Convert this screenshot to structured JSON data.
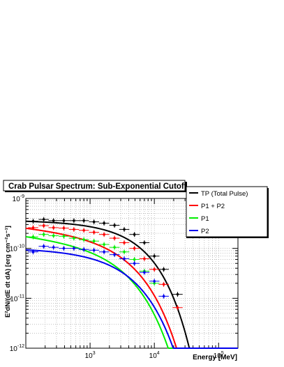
{
  "chart_data": {
    "type": "scatter",
    "title": "Crab Pulsar Spectrum: Sub-Exponential Cutoff",
    "xlabel": "Energy [MeV]",
    "ylabel": "E²dN/(dE dt dA) [erg cm⁻²s⁻¹]",
    "xscale": "log",
    "yscale": "log",
    "xlim": [
      100,
      200000
    ],
    "ylim": [
      1e-12,
      1e-09
    ],
    "grid": true,
    "legend_position": "top-right",
    "x_ticks": [
      {
        "value": 1000,
        "base": "10",
        "exp": "3"
      },
      {
        "value": 10000,
        "base": "10",
        "exp": "4"
      },
      {
        "value": 100000,
        "base": "10",
        "exp": "5"
      }
    ],
    "y_ticks": [
      {
        "value": 1e-09,
        "base": "10",
        "exp": "-9"
      },
      {
        "value": 1e-10,
        "base": "10",
        "exp": "-10"
      },
      {
        "value": 1e-11,
        "base": "10",
        "exp": "-11"
      },
      {
        "value": 1e-12,
        "base": "10",
        "exp": "-12"
      }
    ],
    "series": [
      {
        "name": "TP (Total Pulse)",
        "color": "#000000",
        "model": {
          "norm": 3.6e-10,
          "alpha": 0.02,
          "cutoff_mev": 5000,
          "b": 0.9
        },
        "points": [
          {
            "x": 130,
            "y": 3.5e-10
          },
          {
            "x": 190,
            "y": 3.8e-10
          },
          {
            "x": 270,
            "y": 3.6e-10
          },
          {
            "x": 390,
            "y": 3.6e-10
          },
          {
            "x": 560,
            "y": 3.6e-10
          },
          {
            "x": 800,
            "y": 3.6e-10
          },
          {
            "x": 1150,
            "y": 3.4e-10
          },
          {
            "x": 1650,
            "y": 3.2e-10
          },
          {
            "x": 2400,
            "y": 2.9e-10
          },
          {
            "x": 3400,
            "y": 2.4e-10
          },
          {
            "x": 4900,
            "y": 1.9e-10
          },
          {
            "x": 7000,
            "y": 1.3e-10
          },
          {
            "x": 10000,
            "y": 7e-11
          },
          {
            "x": 14000,
            "y": 3.8e-11
          },
          {
            "x": 23000,
            "y": 1.2e-11
          }
        ]
      },
      {
        "name": "P1 + P2",
        "color": "#ff0000",
        "model": {
          "norm": 2.7e-10,
          "alpha": 0.12,
          "cutoff_mev": 3000,
          "b": 0.8
        },
        "points": [
          {
            "x": 130,
            "y": 2.6e-10
          },
          {
            "x": 190,
            "y": 2.85e-10
          },
          {
            "x": 270,
            "y": 2.6e-10
          },
          {
            "x": 390,
            "y": 2.55e-10
          },
          {
            "x": 560,
            "y": 2.4e-10
          },
          {
            "x": 800,
            "y": 2.3e-10
          },
          {
            "x": 1150,
            "y": 2.1e-10
          },
          {
            "x": 1650,
            "y": 1.9e-10
          },
          {
            "x": 2400,
            "y": 1.6e-10
          },
          {
            "x": 3400,
            "y": 1.3e-10
          },
          {
            "x": 4900,
            "y": 1e-10
          },
          {
            "x": 7000,
            "y": 6.2e-11
          },
          {
            "x": 10000,
            "y": 3.8e-11
          },
          {
            "x": 14000,
            "y": 1.9e-11
          },
          {
            "x": 23000,
            "y": 6.5e-12
          }
        ]
      },
      {
        "name": "P1",
        "color": "#00ee00",
        "model": {
          "norm": 1.85e-10,
          "alpha": 0.14,
          "cutoff_mev": 2500,
          "b": 0.8
        },
        "points": [
          {
            "x": 130,
            "y": 1.7e-10
          },
          {
            "x": 190,
            "y": 1.9e-10
          },
          {
            "x": 270,
            "y": 1.8e-10
          },
          {
            "x": 390,
            "y": 1.75e-10
          },
          {
            "x": 560,
            "y": 1.6e-10
          },
          {
            "x": 800,
            "y": 1.5e-10
          },
          {
            "x": 1150,
            "y": 1.4e-10
          },
          {
            "x": 1650,
            "y": 1.2e-10
          },
          {
            "x": 2400,
            "y": 1.05e-10
          },
          {
            "x": 3400,
            "y": 8.5e-11
          },
          {
            "x": 4900,
            "y": 6e-11
          },
          {
            "x": 7000,
            "y": 3.5e-11
          },
          {
            "x": 10000,
            "y": 2e-11
          }
        ]
      },
      {
        "name": "P2",
        "color": "#0000ee",
        "model": {
          "norm": 1e-10,
          "alpha": 0.02,
          "cutoff_mev": 3000,
          "b": 0.8
        },
        "points": [
          {
            "x": 130,
            "y": 8.5e-11
          },
          {
            "x": 190,
            "y": 1.1e-10
          },
          {
            "x": 270,
            "y": 1.05e-10
          },
          {
            "x": 390,
            "y": 1e-10
          },
          {
            "x": 560,
            "y": 1e-10
          },
          {
            "x": 800,
            "y": 9.5e-11
          },
          {
            "x": 1150,
            "y": 9.2e-11
          },
          {
            "x": 1650,
            "y": 8.5e-11
          },
          {
            "x": 2400,
            "y": 7.5e-11
          },
          {
            "x": 3400,
            "y": 6.2e-11
          },
          {
            "x": 4900,
            "y": 5e-11
          },
          {
            "x": 7000,
            "y": 3.3e-11
          },
          {
            "x": 10000,
            "y": 2.2e-11
          },
          {
            "x": 14000,
            "y": 1.1e-11
          }
        ]
      }
    ]
  }
}
